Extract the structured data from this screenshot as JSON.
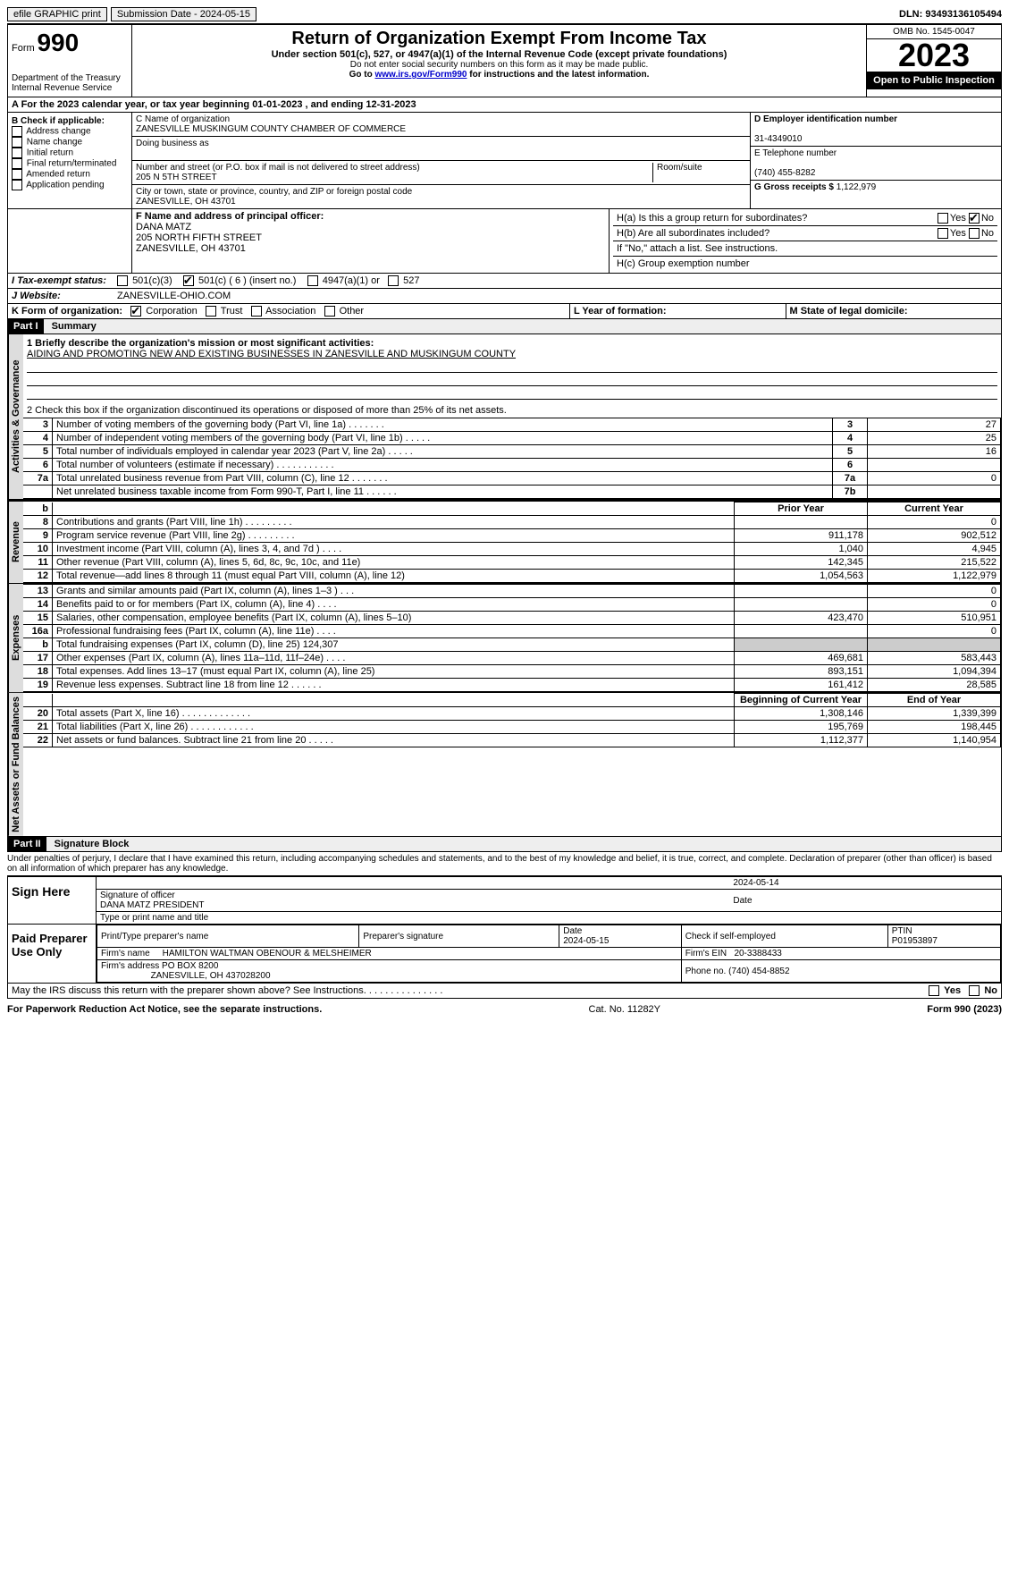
{
  "topbar": {
    "efile": "efile GRAPHIC print",
    "submission": "Submission Date - 2024-05-15",
    "dln": "DLN: 93493136105494"
  },
  "header": {
    "form_word": "Form",
    "form_num": "990",
    "title": "Return of Organization Exempt From Income Tax",
    "sub": "Under section 501(c), 527, or 4947(a)(1) of the Internal Revenue Code (except private foundations)",
    "warn": "Do not enter social security numbers on this form as it may be made public.",
    "goto_pre": "Go to ",
    "goto_link": "www.irs.gov/Form990",
    "goto_post": " for instructions and the latest information.",
    "dept": "Department of the Treasury Internal Revenue Service",
    "omb": "OMB No. 1545-0047",
    "year": "2023",
    "open": "Open to Public Inspection"
  },
  "row_a": "A For the 2023 calendar year, or tax year beginning 01-01-2023    , and ending 12-31-2023",
  "box_b": {
    "title": "B Check if applicable:",
    "items": [
      "Address change",
      "Name change",
      "Initial return",
      "Final return/terminated",
      "Amended return",
      "Application pending"
    ]
  },
  "box_c": {
    "name_lbl": "C Name of organization",
    "name": "ZANESVILLE MUSKINGUM COUNTY CHAMBER OF COMMERCE",
    "dba_lbl": "Doing business as",
    "street_lbl": "Number and street (or P.O. box if mail is not delivered to street address)",
    "room_lbl": "Room/suite",
    "street": "205 N 5TH STREET",
    "city_lbl": "City or town, state or province, country, and ZIP or foreign postal code",
    "city": "ZANESVILLE, OH  43701"
  },
  "box_d": {
    "lbl": "D Employer identification number",
    "val": "31-4349010"
  },
  "box_e": {
    "lbl": "E Telephone number",
    "val": "(740) 455-8282"
  },
  "box_g": {
    "lbl": "G Gross receipts $",
    "val": "1,122,979"
  },
  "box_f": {
    "lbl": "F  Name and address of principal officer:",
    "name": "DANA MATZ",
    "addr1": "205 NORTH FIFTH STREET",
    "addr2": "ZANESVILLE, OH  43701"
  },
  "box_h": {
    "a": "H(a)  Is this a group return for subordinates?",
    "b": "H(b)  Are all subordinates included?",
    "note": "If \"No,\" attach a list. See instructions.",
    "c": "H(c)  Group exemption number",
    "yes": "Yes",
    "no": "No"
  },
  "row_i": {
    "lbl": "I   Tax-exempt status:",
    "opts": [
      "501(c)(3)",
      "501(c) ( 6 ) (insert no.)",
      "4947(a)(1) or",
      "527"
    ]
  },
  "row_j": {
    "lbl": "J   Website:",
    "val": "ZANESVILLE-OHIO.COM"
  },
  "row_k": {
    "lbl": "K Form of organization:",
    "opts": [
      "Corporation",
      "Trust",
      "Association",
      "Other"
    ]
  },
  "row_l": "L Year of formation:",
  "row_m": "M State of legal domicile:",
  "part1": {
    "hdr": "Part I",
    "title": "Summary",
    "line1_lbl": "1   Briefly describe the organization's mission or most significant activities:",
    "line1_val": "AIDING AND PROMOTING NEW AND EXISTING BUSINESSES IN ZANESVILLE AND MUSKINGUM COUNTY",
    "line2": "2   Check this box          if the organization discontinued its operations or disposed of more than 25% of its net assets.",
    "gov_lbl": "Activities & Governance",
    "rev_lbl": "Revenue",
    "exp_lbl": "Expenses",
    "net_lbl": "Net Assets or Fund Balances",
    "prior": "Prior Year",
    "current": "Current Year",
    "begin": "Beginning of Current Year",
    "end": "End of Year",
    "gov_rows": [
      {
        "n": "3",
        "d": "Number of voting members of the governing body (Part VI, line 1a)    .    .    .    .    .    .    .",
        "b": "3",
        "v": "27"
      },
      {
        "n": "4",
        "d": "Number of independent voting members of the governing body (Part VI, line 1b)    .    .    .    .    .",
        "b": "4",
        "v": "25"
      },
      {
        "n": "5",
        "d": "Total number of individuals employed in calendar year 2023 (Part V, line 2a)    .    .    .    .    .",
        "b": "5",
        "v": "16"
      },
      {
        "n": "6",
        "d": "Total number of volunteers (estimate if necessary)    .    .    .    .    .    .    .    .    .    .    .",
        "b": "6",
        "v": ""
      },
      {
        "n": "7a",
        "d": "Total unrelated business revenue from Part VIII, column (C), line 12    .    .    .    .    .    .    .",
        "b": "7a",
        "v": "0"
      },
      {
        "n": "",
        "d": "Net unrelated business taxable income from Form 990-T, Part I, line 11    .    .    .    .    .    .",
        "b": "7b",
        "v": ""
      }
    ],
    "rev_rows": [
      {
        "n": "8",
        "d": "Contributions and grants (Part VIII, line 1h)    .    .    .    .    .    .    .    .    .",
        "p": "",
        "c": "0"
      },
      {
        "n": "9",
        "d": "Program service revenue (Part VIII, line 2g)    .    .    .    .    .    .    .    .    .",
        "p": "911,178",
        "c": "902,512"
      },
      {
        "n": "10",
        "d": "Investment income (Part VIII, column (A), lines 3, 4, and 7d )    .    .    .    .",
        "p": "1,040",
        "c": "4,945"
      },
      {
        "n": "11",
        "d": "Other revenue (Part VIII, column (A), lines 5, 6d, 8c, 9c, 10c, and 11e)",
        "p": "142,345",
        "c": "215,522"
      },
      {
        "n": "12",
        "d": "Total revenue—add lines 8 through 11 (must equal Part VIII, column (A), line 12)",
        "p": "1,054,563",
        "c": "1,122,979"
      }
    ],
    "exp_rows": [
      {
        "n": "13",
        "d": "Grants and similar amounts paid (Part IX, column (A), lines 1–3 )    .    .    .",
        "p": "",
        "c": "0"
      },
      {
        "n": "14",
        "d": "Benefits paid to or for members (Part IX, column (A), line 4)    .    .    .    .",
        "p": "",
        "c": "0"
      },
      {
        "n": "15",
        "d": "Salaries, other compensation, employee benefits (Part IX, column (A), lines 5–10)",
        "p": "423,470",
        "c": "510,951"
      },
      {
        "n": "16a",
        "d": "Professional fundraising fees (Part IX, column (A), line 11e)    .    .    .    .",
        "p": "",
        "c": "0"
      },
      {
        "n": "b",
        "d": "Total fundraising expenses (Part IX, column (D), line 25) 124,307",
        "p": "grey",
        "c": "grey"
      },
      {
        "n": "17",
        "d": "Other expenses (Part IX, column (A), lines 11a–11d, 11f–24e)    .    .    .    .",
        "p": "469,681",
        "c": "583,443"
      },
      {
        "n": "18",
        "d": "Total expenses. Add lines 13–17 (must equal Part IX, column (A), line 25)",
        "p": "893,151",
        "c": "1,094,394"
      },
      {
        "n": "19",
        "d": "Revenue less expenses. Subtract line 18 from line 12    .    .    .    .    .    .",
        "p": "161,412",
        "c": "28,585"
      }
    ],
    "net_rows": [
      {
        "n": "20",
        "d": "Total assets (Part X, line 16)    .    .    .    .    .    .    .    .    .    .    .    .    .",
        "p": "1,308,146",
        "c": "1,339,399"
      },
      {
        "n": "21",
        "d": "Total liabilities (Part X, line 26)    .    .    .    .    .    .    .    .    .    .    .    .",
        "p": "195,769",
        "c": "198,445"
      },
      {
        "n": "22",
        "d": "Net assets or fund balances. Subtract line 21 from line 20    .    .    .    .    .",
        "p": "1,112,377",
        "c": "1,140,954"
      }
    ]
  },
  "part2": {
    "hdr": "Part II",
    "title": "Signature Block",
    "decl": "Under penalties of perjury, I declare that I have examined this return, including accompanying schedules and statements, and to the best of my knowledge and belief, it is true, correct, and complete. Declaration of preparer (other than officer) is based on all information of which preparer has any knowledge.",
    "sign_here": "Sign Here",
    "sig_officer": "Signature of officer",
    "sig_name": "DANA MATZ  PRESIDENT",
    "sig_type": "Type or print name and title",
    "sig_date_lbl": "Date",
    "sig_date": "2024-05-14",
    "paid": "Paid Preparer Use Only",
    "prep_name_lbl": "Print/Type preparer's name",
    "prep_sig_lbl": "Preparer's signature",
    "prep_date_lbl": "Date",
    "prep_date": "2024-05-15",
    "prep_check": "Check          if self-employed",
    "ptin_lbl": "PTIN",
    "ptin": "P01953897",
    "firm_name_lbl": "Firm's name",
    "firm_name": "HAMILTON WALTMAN OBENOUR & MELSHEIMER",
    "firm_ein_lbl": "Firm's EIN",
    "firm_ein": "20-3388433",
    "firm_addr_lbl": "Firm's address",
    "firm_addr1": "PO BOX 8200",
    "firm_addr2": "ZANESVILLE, OH  437028200",
    "firm_phone_lbl": "Phone no.",
    "firm_phone": "(740) 454-8852",
    "discuss": "May the IRS discuss this return with the preparer shown above? See Instructions.    .    .    .    .    .    .    .    .    .    .    .    .    .    ."
  },
  "footer": {
    "left": "For Paperwork Reduction Act Notice, see the separate instructions.",
    "mid": "Cat. No. 11282Y",
    "right": "Form 990 (2023)"
  }
}
